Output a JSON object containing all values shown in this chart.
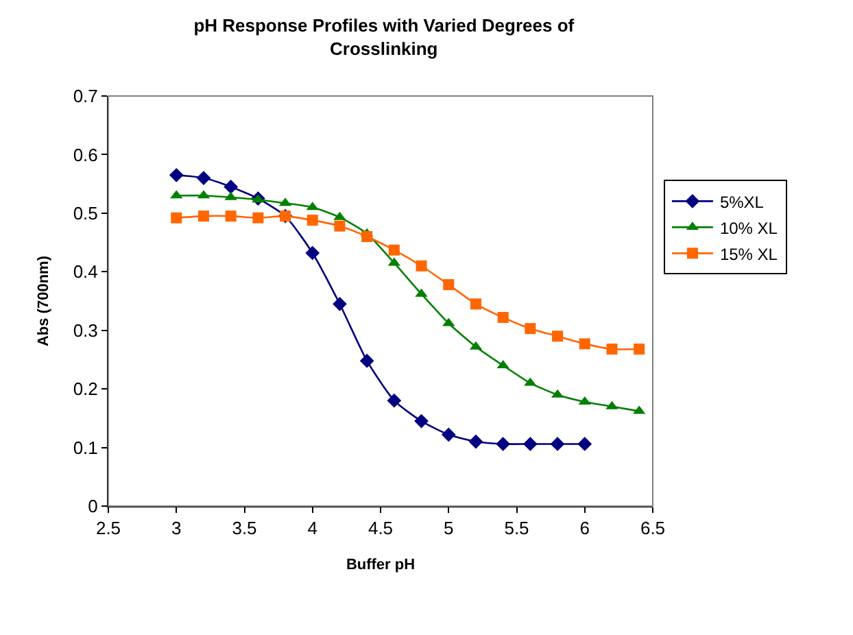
{
  "chart_data": {
    "type": "line",
    "title": "pH Response Profiles with Varied Degrees of Crosslinking",
    "xlabel": "Buffer pH",
    "ylabel": "Abs (700nm)",
    "xlim": [
      2.5,
      6.5
    ],
    "xticks": [
      2.5,
      3,
      3.5,
      4,
      4.5,
      5,
      5.5,
      6,
      6.5
    ],
    "ylim": [
      0,
      0.7
    ],
    "yticks": [
      0,
      0.1,
      0.2,
      0.3,
      0.4,
      0.5,
      0.6,
      0.7
    ],
    "legend": "right",
    "series": [
      {
        "name": "5%XL",
        "color": "#000080",
        "marker": "diamond",
        "x": [
          3,
          3.2,
          3.4,
          3.6,
          3.8,
          4,
          4.2,
          4.4,
          4.6,
          4.8,
          5,
          5.2,
          5.4,
          5.6,
          5.8,
          6
        ],
        "values": [
          0.565,
          0.56,
          0.545,
          0.525,
          0.495,
          0.432,
          0.345,
          0.248,
          0.18,
          0.145,
          0.122,
          0.11,
          0.106,
          0.106,
          0.106,
          0.106
        ]
      },
      {
        "name": "10% XL",
        "color": "#008000",
        "marker": "triangle",
        "x": [
          3,
          3.2,
          3.4,
          3.6,
          3.8,
          4,
          4.2,
          4.4,
          4.6,
          4.8,
          5,
          5.2,
          5.4,
          5.6,
          5.8,
          6,
          6.2,
          6.4
        ],
        "values": [
          0.53,
          0.53,
          0.527,
          0.523,
          0.517,
          0.51,
          0.493,
          0.465,
          0.415,
          0.362,
          0.312,
          0.272,
          0.24,
          0.21,
          0.19,
          0.178,
          0.17,
          0.162
        ]
      },
      {
        "name": "15% XL",
        "color": "#ff6600",
        "marker": "square",
        "x": [
          3,
          3.2,
          3.4,
          3.6,
          3.8,
          4,
          4.2,
          4.4,
          4.6,
          4.8,
          5,
          5.2,
          5.4,
          5.6,
          5.8,
          6,
          6.2,
          6.4
        ],
        "values": [
          0.492,
          0.495,
          0.495,
          0.492,
          0.495,
          0.488,
          0.478,
          0.46,
          0.437,
          0.41,
          0.378,
          0.345,
          0.322,
          0.303,
          0.29,
          0.277,
          0.268,
          0.268
        ]
      }
    ]
  }
}
